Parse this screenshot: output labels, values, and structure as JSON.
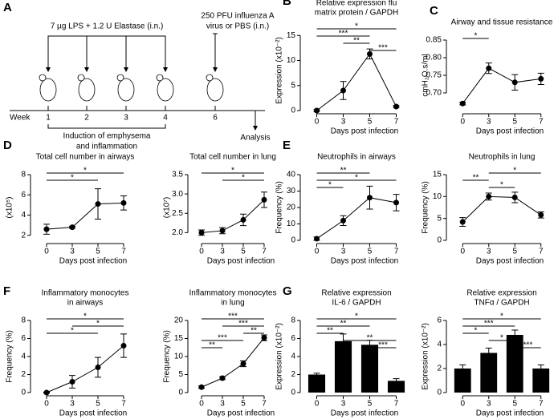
{
  "schematic": {
    "panel": "A",
    "treatment": "7 µg LPS + 1.2 U Elastase (i.n.)",
    "infection": [
      "250 PFU influenza A",
      "virus or PBS (i.n.)"
    ],
    "axis_label": "Week",
    "weeks": [
      "1",
      "2",
      "3",
      "4",
      "6"
    ],
    "phase": [
      "Induction of emphysema",
      "and inflammation"
    ],
    "endpoint": "Analysis"
  },
  "chart_data": [
    {
      "type": "line",
      "panel": "B",
      "title": [
        "Relative expression flu",
        "matrix protein / GAPDH"
      ],
      "ylabel": "Expression (x10⁻²)",
      "xlabel": "Days post infection",
      "categories": [
        "0",
        "3",
        "5",
        "7"
      ],
      "values": [
        0,
        4,
        11.3,
        0.8
      ],
      "errors": [
        0.2,
        1.8,
        1.0,
        0.2
      ],
      "ylim": [
        0,
        16
      ],
      "yticks": [
        0,
        5,
        10,
        15
      ],
      "brackets": [
        {
          "label": "*",
          "pair": [
            "0",
            "7"
          ]
        },
        {
          "label": "***",
          "pair": [
            "0",
            "5"
          ]
        },
        {
          "label": "**",
          "pair": [
            "3",
            "5"
          ]
        },
        {
          "label": "***",
          "pair": [
            "5",
            "7"
          ]
        }
      ]
    },
    {
      "type": "line",
      "panel": "C",
      "title": [
        "Airway and tissue resistance"
      ],
      "ylabel": "cmH₂O.s/ml",
      "xlabel": "Days post infection",
      "categories": [
        "0",
        "3",
        "5",
        "7"
      ],
      "values": [
        0.67,
        0.77,
        0.73,
        0.74
      ],
      "errors": [
        0.004,
        0.015,
        0.022,
        0.016
      ],
      "ylim": [
        0.65,
        0.85
      ],
      "yticks": [
        {
          "value": 0.7,
          "label": "0.70"
        },
        {
          "value": 0.75,
          "label": "0.75"
        },
        {
          "value": 0.8,
          "label": "0.80"
        },
        {
          "value": 0.85,
          "label": "0.85"
        }
      ],
      "brackets": [
        {
          "label": "*",
          "pair": [
            "0",
            "3"
          ]
        }
      ]
    },
    {
      "type": "line",
      "panel": "D",
      "title": [
        "Total cell number in airways"
      ],
      "ylabel": "(x10⁵)",
      "xlabel": "Days post infection",
      "categories": [
        "0",
        "3",
        "5",
        "7"
      ],
      "values": [
        2.6,
        2.8,
        5.1,
        5.2
      ],
      "errors": [
        0.5,
        0.1,
        1.5,
        0.7
      ],
      "ylim": [
        1.5,
        8
      ],
      "yticks": [
        2,
        4,
        6,
        8
      ],
      "brackets": [
        {
          "label": "*",
          "pair": [
            "0",
            "7"
          ]
        },
        {
          "label": "*",
          "pair": [
            "0",
            "5"
          ]
        }
      ]
    },
    {
      "type": "line",
      "title": [
        "Total cell number in lung"
      ],
      "ylabel": "(x10⁷)",
      "xlabel": "Days post infection",
      "categories": [
        "0",
        "3",
        "5",
        "7"
      ],
      "values": [
        2.0,
        2.05,
        2.33,
        2.85
      ],
      "errors": [
        0.07,
        0.08,
        0.15,
        0.2
      ],
      "ylim": [
        1.8,
        3.5
      ],
      "yticks": [
        {
          "value": 2,
          "label": "2.0"
        },
        2.5,
        {
          "value": 3,
          "label": "3.0"
        },
        3.5
      ],
      "brackets": [
        {
          "label": "*",
          "pair": [
            "0",
            "7"
          ]
        },
        {
          "label": "*",
          "pair": [
            "3",
            "7"
          ]
        }
      ]
    },
    {
      "type": "line",
      "panel": "E",
      "title": [
        "Neutrophils in airways"
      ],
      "ylabel": "Frequency (%)",
      "xlabel": "Days post infection",
      "categories": [
        "0",
        "3",
        "5",
        "7"
      ],
      "values": [
        1,
        12,
        26,
        23
      ],
      "errors": [
        1,
        3,
        7,
        5
      ],
      "ylim": [
        0,
        40
      ],
      "yticks": [
        0,
        10,
        20,
        30,
        40
      ],
      "brackets": [
        {
          "label": "**",
          "pair": [
            "0",
            "5"
          ]
        },
        {
          "label": "*",
          "pair": [
            "0",
            "7"
          ]
        },
        {
          "label": "*",
          "pair": [
            "0",
            "3"
          ]
        }
      ]
    },
    {
      "type": "line",
      "title": [
        "Neutrophils in lung"
      ],
      "ylabel": "Frequency (%)",
      "xlabel": "Days post infection",
      "categories": [
        "0",
        "3",
        "5",
        "7"
      ],
      "values": [
        4.2,
        10,
        9.8,
        5.8
      ],
      "errors": [
        1,
        0.8,
        1.2,
        0.7
      ],
      "ylim": [
        0,
        15
      ],
      "yticks": [
        0,
        5,
        10,
        15
      ],
      "brackets": [
        {
          "label": "*",
          "pair": [
            "3",
            "7"
          ]
        },
        {
          "label": "**",
          "pair": [
            "0",
            "3"
          ]
        },
        {
          "label": "*",
          "pair": [
            "3",
            "5"
          ]
        }
      ]
    },
    {
      "type": "line",
      "panel": "F",
      "title": [
        "Inflammatory monocytes",
        "in airways"
      ],
      "ylabel": "Frequency (%)",
      "xlabel": "Days post infection",
      "categories": [
        "0",
        "3",
        "5",
        "7"
      ],
      "values": [
        0,
        1.2,
        2.8,
        5.2
      ],
      "errors": [
        0.05,
        0.7,
        1.1,
        1.3
      ],
      "ylim": [
        0,
        8
      ],
      "yticks": [
        0,
        2,
        4,
        6,
        8
      ],
      "brackets": [
        {
          "label": "*",
          "pair": [
            "0",
            "7"
          ]
        },
        {
          "label": "*",
          "pair": [
            "3",
            "7"
          ]
        },
        {
          "label": "*",
          "pair": [
            "0",
            "5"
          ]
        }
      ]
    },
    {
      "type": "line",
      "title": [
        "Inflammatory monocytes",
        "in lung"
      ],
      "ylabel": "Frequency (%)",
      "xlabel": "Days post infection",
      "categories": [
        "0",
        "3",
        "5",
        "7"
      ],
      "values": [
        1.5,
        4,
        8,
        15.2
      ],
      "errors": [
        0.3,
        0.4,
        0.8,
        0.8
      ],
      "ylim": [
        0,
        20
      ],
      "yticks": [
        0,
        5,
        10,
        15,
        20
      ],
      "brackets": [
        {
          "label": "***",
          "pair": [
            "0",
            "7"
          ]
        },
        {
          "label": "***",
          "pair": [
            "3",
            "7"
          ]
        },
        {
          "label": "**",
          "pair": [
            "5",
            "7"
          ]
        },
        {
          "label": "***",
          "pair": [
            "0",
            "5"
          ]
        },
        {
          "label": "**",
          "pair": [
            "0",
            "3"
          ]
        }
      ]
    },
    {
      "type": "bar",
      "panel": "G",
      "title": [
        "Relative expression",
        "IL-6 / GAPDH"
      ],
      "ylabel": "Expression (x10⁻²)",
      "xlabel": "Days post infection",
      "categories": [
        "0",
        "3",
        "5",
        "7"
      ],
      "values": [
        2.0,
        5.7,
        5.3,
        1.3
      ],
      "errors": [
        0.15,
        0.8,
        0.5,
        0.25
      ],
      "ylim": [
        0,
        8
      ],
      "yticks": [
        0,
        2,
        4,
        6,
        8
      ],
      "color": "#000000",
      "brackets": [
        {
          "label": "*",
          "pair": [
            "0",
            "7"
          ]
        },
        {
          "label": "**",
          "pair": [
            "0",
            "5"
          ]
        },
        {
          "label": "**",
          "pair": [
            "0",
            "3"
          ]
        },
        {
          "label": "**",
          "pair": [
            "3",
            "7"
          ]
        },
        {
          "label": "***",
          "pair": [
            "5",
            "7"
          ]
        }
      ]
    },
    {
      "type": "bar",
      "title": [
        "Relative expression",
        "TNFα / GAPDH"
      ],
      "ylabel": "Expression (x10⁻²)",
      "xlabel": "Days post infection",
      "categories": [
        "0",
        "3",
        "5",
        "7"
      ],
      "values": [
        2.0,
        3.3,
        4.8,
        2.0
      ],
      "errors": [
        0.3,
        0.4,
        0.4,
        0.3
      ],
      "ylim": [
        0,
        6
      ],
      "yticks": [
        0,
        2,
        4,
        6
      ],
      "color": "#000000",
      "brackets": [
        {
          "label": "*",
          "pair": [
            "0",
            "7"
          ]
        },
        {
          "label": "***",
          "pair": [
            "0",
            "5"
          ]
        },
        {
          "label": "*",
          "pair": [
            "0",
            "3"
          ]
        },
        {
          "label": "*",
          "pair": [
            "3",
            "5"
          ]
        },
        {
          "label": "***",
          "pair": [
            "5",
            "7"
          ]
        }
      ]
    }
  ]
}
